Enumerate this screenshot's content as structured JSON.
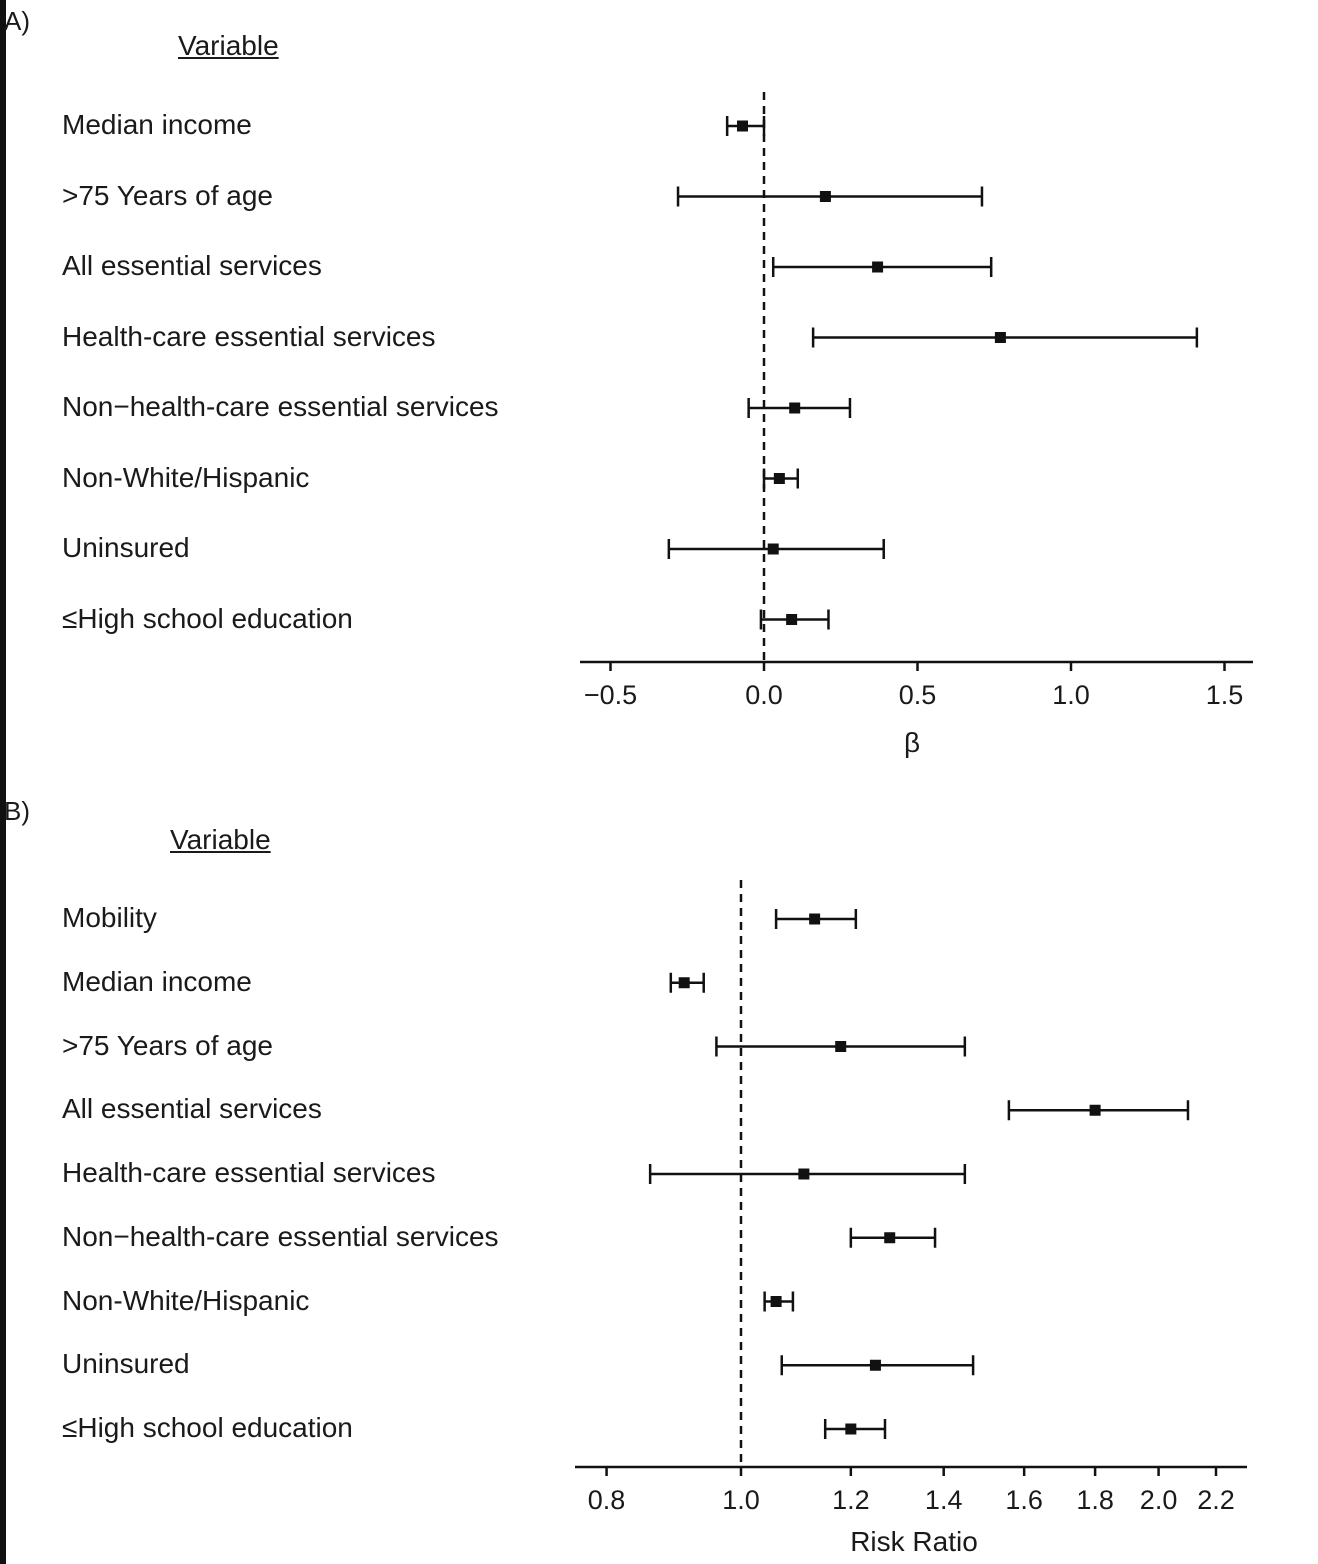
{
  "chart_data": [
    {
      "panel": "A)",
      "type": "forest",
      "column_header": "Variable",
      "xlabel": "β",
      "xlim": [
        -0.6,
        1.6
      ],
      "xticks": [
        -0.5,
        0.0,
        0.5,
        1.0,
        1.5
      ],
      "xtick_labels": [
        "−0.5",
        "0.0",
        "0.5",
        "1.0",
        "1.5"
      ],
      "reference_line": 0.0,
      "rows": [
        {
          "label": "Median income",
          "estimate": -0.07,
          "lower": -0.12,
          "upper": 0.0
        },
        {
          "label": ">75 Years of age",
          "estimate": 0.2,
          "lower": -0.28,
          "upper": 0.71
        },
        {
          "label": "All essential services",
          "estimate": 0.37,
          "lower": 0.03,
          "upper": 0.74
        },
        {
          "label": "Health-care essential services",
          "estimate": 0.77,
          "lower": 0.16,
          "upper": 1.41
        },
        {
          "label": "Non−health-care essential services",
          "estimate": 0.1,
          "lower": -0.05,
          "upper": 0.28
        },
        {
          "label": "Non-White/Hispanic",
          "estimate": 0.05,
          "lower": 0.0,
          "upper": 0.11
        },
        {
          "label": "Uninsured",
          "estimate": 0.03,
          "lower": -0.31,
          "upper": 0.39
        },
        {
          "label": "≤High school education",
          "estimate": 0.09,
          "lower": -0.01,
          "upper": 0.21
        }
      ]
    },
    {
      "panel": "B)",
      "type": "forest",
      "column_header": "Variable",
      "xlabel": "Risk Ratio",
      "xscale": "log",
      "xlim": [
        0.75,
        2.3
      ],
      "xticks": [
        0.8,
        1.0,
        1.2,
        1.4,
        1.6,
        1.8,
        2.0,
        2.2
      ],
      "xtick_labels": [
        "0.8",
        "1.0",
        "1.2",
        "1.4",
        "1.6",
        "1.8",
        "2.0",
        "2.2"
      ],
      "reference_line": 1.0,
      "rows": [
        {
          "label": "Mobility",
          "estimate": 1.13,
          "lower": 1.06,
          "upper": 1.21
        },
        {
          "label": "Median income",
          "estimate": 0.91,
          "lower": 0.89,
          "upper": 0.94
        },
        {
          "label": ">75 Years of age",
          "estimate": 1.18,
          "lower": 0.96,
          "upper": 1.45
        },
        {
          "label": "All essential services",
          "estimate": 1.8,
          "lower": 1.56,
          "upper": 2.1
        },
        {
          "label": "Health-care essential services",
          "estimate": 1.11,
          "lower": 0.86,
          "upper": 1.45
        },
        {
          "label": "Non−health-care essential services",
          "estimate": 1.28,
          "lower": 1.2,
          "upper": 1.38
        },
        {
          "label": "Non-White/Hispanic",
          "estimate": 1.06,
          "lower": 1.04,
          "upper": 1.09
        },
        {
          "label": "Uninsured",
          "estimate": 1.25,
          "lower": 1.07,
          "upper": 1.47
        },
        {
          "label": "≤High school education",
          "estimate": 1.2,
          "lower": 1.15,
          "upper": 1.27
        }
      ]
    }
  ]
}
